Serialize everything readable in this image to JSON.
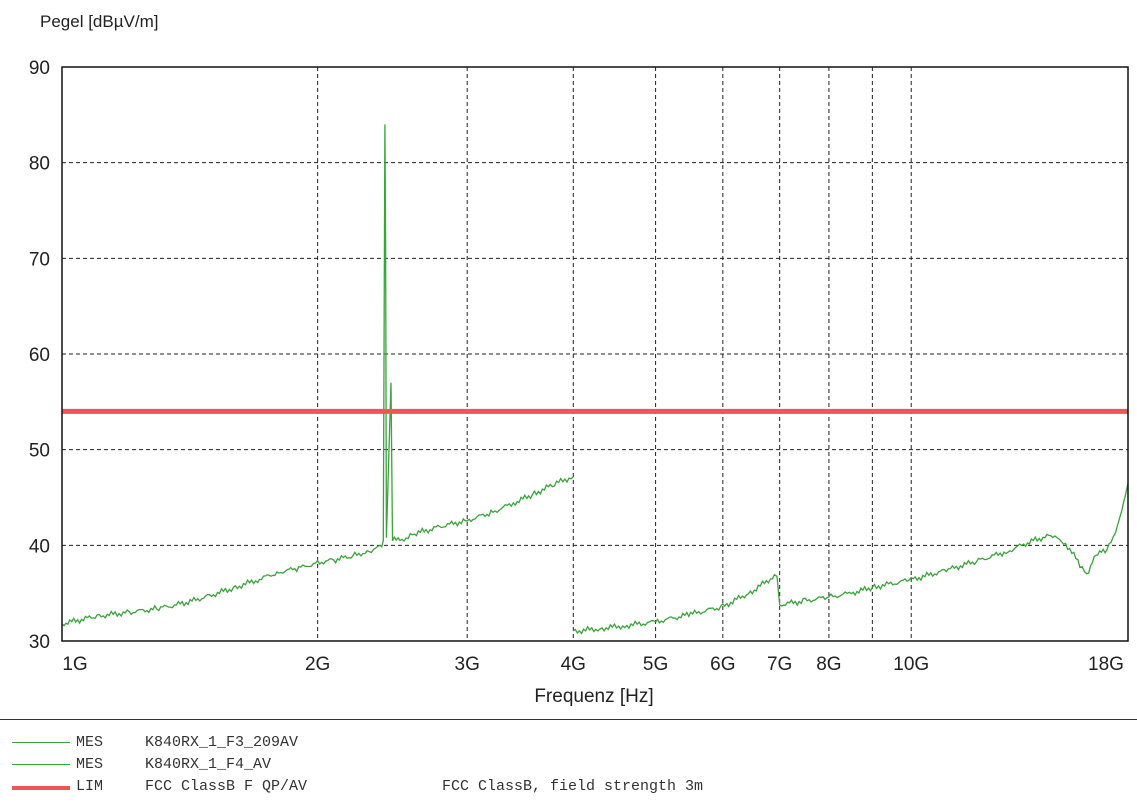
{
  "chart_data": {
    "type": "line",
    "ylabel": "Pegel [dBµV/m]",
    "xlabel": "Frequenz [Hz]",
    "xscale": "log",
    "xlim": [
      1000000000.0,
      18000000000.0
    ],
    "ylim": [
      30,
      90
    ],
    "grid": true,
    "yticks": [
      30,
      40,
      50,
      60,
      70,
      80,
      90
    ],
    "xticks": [
      {
        "value": 1000000000.0,
        "label": "1G"
      },
      {
        "value": 2000000000.0,
        "label": "2G"
      },
      {
        "value": 3000000000.0,
        "label": "3G"
      },
      {
        "value": 4000000000.0,
        "label": "4G"
      },
      {
        "value": 5000000000.0,
        "label": "5G"
      },
      {
        "value": 6000000000.0,
        "label": "6G"
      },
      {
        "value": 7000000000.0,
        "label": "7G"
      },
      {
        "value": 8000000000.0,
        "label": "8G"
      },
      {
        "value": 10000000000.0,
        "label": "10G"
      },
      {
        "value": 18000000000.0,
        "label": "18G"
      }
    ],
    "series": [
      {
        "name": "K840RX_1_F3_209AV",
        "color": "#3aa33a",
        "points": [
          [
            1000000000.0,
            31.8
          ],
          [
            1100000000.0,
            32.6
          ],
          [
            1200000000.0,
            33.0
          ],
          [
            1300000000.0,
            33.4
          ],
          [
            1400000000.0,
            34.0
          ],
          [
            1500000000.0,
            34.8
          ],
          [
            1600000000.0,
            35.6
          ],
          [
            1700000000.0,
            36.4
          ],
          [
            1800000000.0,
            37.2
          ],
          [
            1900000000.0,
            37.6
          ],
          [
            2000000000.0,
            38.2
          ],
          [
            2100000000.0,
            38.5
          ],
          [
            2200000000.0,
            38.9
          ],
          [
            2300000000.0,
            39.4
          ],
          [
            2380000000.0,
            39.9
          ],
          [
            2390000000.0,
            40.5
          ],
          [
            2400000000.0,
            84.0
          ],
          [
            2405000000.0,
            72.0
          ],
          [
            2410000000.0,
            40.8
          ],
          [
            2440000000.0,
            57.0
          ],
          [
            2450000000.0,
            40.6
          ],
          [
            2500000000.0,
            40.5
          ],
          [
            2600000000.0,
            41.2
          ],
          [
            2800000000.0,
            42.0
          ],
          [
            3000000000.0,
            42.6
          ],
          [
            3200000000.0,
            43.4
          ],
          [
            3400000000.0,
            44.4
          ],
          [
            3600000000.0,
            45.4
          ],
          [
            3800000000.0,
            46.4
          ],
          [
            4000000000.0,
            47.2
          ]
        ]
      },
      {
        "name": "K840RX_1_F4_AV",
        "color": "#3aa33a",
        "points": [
          [
            4000000000.0,
            31.0
          ],
          [
            4300000000.0,
            31.3
          ],
          [
            4600000000.0,
            31.6
          ],
          [
            5000000000.0,
            32.0
          ],
          [
            5500000000.0,
            32.8
          ],
          [
            6000000000.0,
            33.6
          ],
          [
            6500000000.0,
            35.2
          ],
          [
            6900000000.0,
            36.8
          ],
          [
            6950000000.0,
            36.9
          ],
          [
            7000000000.0,
            33.8
          ],
          [
            7500000000.0,
            34.2
          ],
          [
            8000000000.0,
            34.6
          ],
          [
            8500000000.0,
            35.0
          ],
          [
            9000000000.0,
            35.6
          ],
          [
            10000000000.0,
            36.4
          ],
          [
            11000000000.0,
            37.4
          ],
          [
            12000000000.0,
            38.4
          ],
          [
            13000000000.0,
            39.4
          ],
          [
            14000000000.0,
            40.6
          ],
          [
            14600000000.0,
            41.0
          ],
          [
            15200000000.0,
            40.2
          ],
          [
            15800000000.0,
            38.0
          ],
          [
            16100000000.0,
            37.0
          ],
          [
            16500000000.0,
            39.0
          ],
          [
            17000000000.0,
            39.5
          ],
          [
            17500000000.0,
            42.0
          ],
          [
            18000000000.0,
            46.5
          ]
        ]
      },
      {
        "name": "FCC ClassB F QP/AV",
        "color": "#ee5555",
        "points": [
          [
            1000000000.0,
            54.0
          ],
          [
            18000000000.0,
            54.0
          ]
        ]
      }
    ]
  },
  "legend": [
    {
      "tag": "MES",
      "name": "K840RX_1_F3_209AV",
      "desc": "",
      "color": "#3aa33a"
    },
    {
      "tag": "MES",
      "name": "K840RX_1_F4_AV",
      "desc": "",
      "color": "#3aa33a"
    },
    {
      "tag": "LIM",
      "name": "FCC ClassB F QP/AV",
      "desc": "FCC ClassB, field strength 3m",
      "color": "#ee5555"
    }
  ]
}
